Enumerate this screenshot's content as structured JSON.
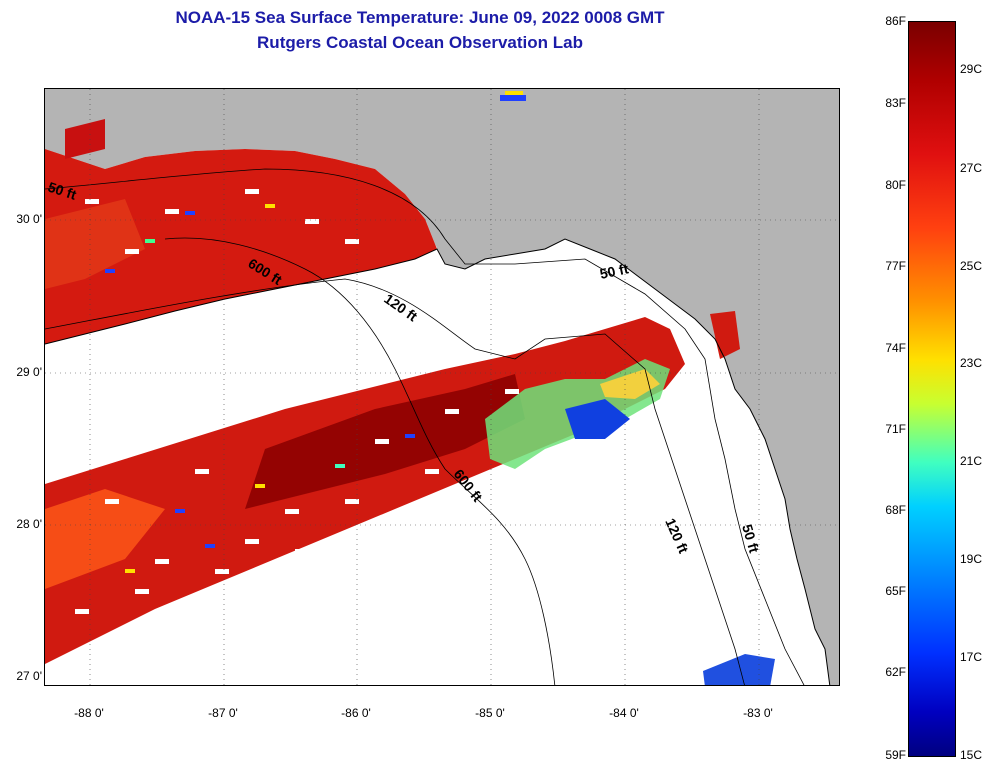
{
  "title": {
    "line1": "NOAA-15 Sea Surface Temperature:  June 09, 2022 0008 GMT",
    "line2": "Rutgers Coastal Ocean Observation Lab"
  },
  "map": {
    "lat_labels": [
      "30 0'",
      "29 0'",
      "28 0'",
      "27 0'"
    ],
    "lon_labels": [
      "-88 0'",
      "-87 0'",
      "-86 0'",
      "-85 0'",
      "-84 0'",
      "-83 0'"
    ],
    "contour_labels": [
      "50 ft",
      "600 ft",
      "120 ft",
      "50 ft",
      "600 ft",
      "120 ft",
      "50 ft"
    ],
    "colors": {
      "land": "#b4b4b4",
      "water_nodata": "#ffffff",
      "warm": "#d01010",
      "hot": "#8a0000"
    }
  },
  "colorbar": {
    "fahrenheit": [
      "86F",
      "83F",
      "80F",
      "77F",
      "74F",
      "71F",
      "68F",
      "65F",
      "62F",
      "59F"
    ],
    "celsius": [
      "29C",
      "27C",
      "25C",
      "23C",
      "21C",
      "19C",
      "17C",
      "15C"
    ]
  }
}
